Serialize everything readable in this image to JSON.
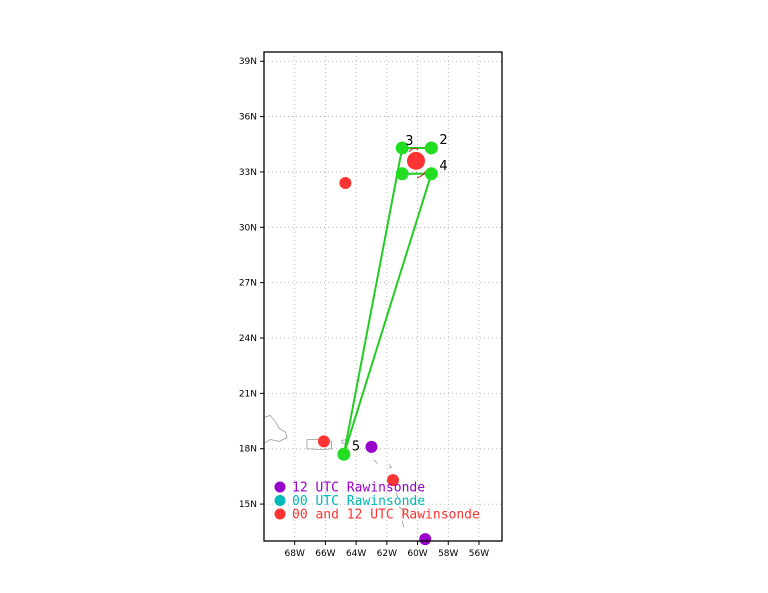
{
  "map": {
    "lon_range": [
      -70,
      -54.5
    ],
    "lat_range": [
      13,
      39.5
    ],
    "lat_ticks": [
      {
        "value": 39,
        "label": "39N"
      },
      {
        "value": 36,
        "label": "36N"
      },
      {
        "value": 33,
        "label": "33N"
      },
      {
        "value": 30,
        "label": "30N"
      },
      {
        "value": 27,
        "label": "27N"
      },
      {
        "value": 24,
        "label": "24N"
      },
      {
        "value": 21,
        "label": "21N"
      },
      {
        "value": 18,
        "label": "18N"
      },
      {
        "value": 15,
        "label": "15N"
      }
    ],
    "lon_ticks": [
      {
        "value": -68,
        "label": "68W"
      },
      {
        "value": -66,
        "label": "66W"
      },
      {
        "value": -64,
        "label": "64W"
      },
      {
        "value": -62,
        "label": "62W"
      },
      {
        "value": -60,
        "label": "60W"
      },
      {
        "value": -58,
        "label": "58W"
      },
      {
        "value": -56,
        "label": "56W"
      }
    ],
    "grid": true,
    "colors": {
      "track": "#22cc22",
      "track_point": "#22dd22",
      "rawinsonde_12": "#9900cc",
      "rawinsonde_00": "#00bbbb",
      "rawinsonde_both": "#ff3333",
      "coast": "#999999"
    },
    "track": [
      {
        "label": "2",
        "lon": -59.1,
        "lat": 34.3
      },
      {
        "label": "3",
        "lon": -61.0,
        "lat": 34.3
      },
      {
        "label": "",
        "lon": -61.0,
        "lat": 32.9
      },
      {
        "label": "4",
        "lon": -59.1,
        "lat": 32.9
      },
      {
        "label": "5",
        "lon": -64.8,
        "lat": 17.7
      }
    ],
    "center_marker": {
      "lon": -60.1,
      "lat": 33.6
    },
    "rawinsondes": [
      {
        "type": "both",
        "lon": -64.7,
        "lat": 32.4
      },
      {
        "type": "both",
        "lon": -66.1,
        "lat": 18.4
      },
      {
        "type": "both",
        "lon": -61.6,
        "lat": 16.3
      },
      {
        "type": "12",
        "lon": -63.0,
        "lat": 18.1
      },
      {
        "type": "12",
        "lon": -59.5,
        "lat": 13.1
      }
    ]
  },
  "legend": [
    {
      "label": "12 UTC Rawinsonde",
      "color": "#9900cc"
    },
    {
      "label": "00 UTC Rawinsonde",
      "color": "#00bbbb"
    },
    {
      "label": "00 and 12 UTC Rawinsonde",
      "color": "#ff3333"
    }
  ]
}
